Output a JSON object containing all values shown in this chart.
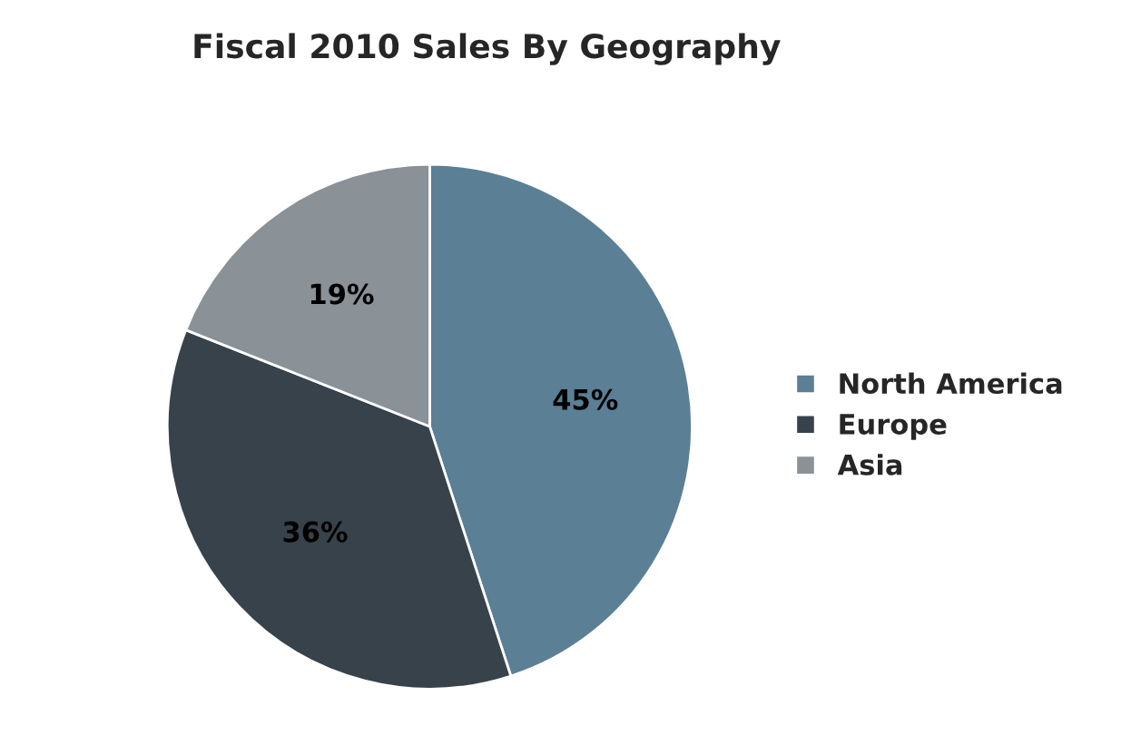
{
  "chart_data": {
    "type": "pie",
    "title": "Fiscal 2010 Sales By Geography",
    "categories": [
      "North America",
      "Europe",
      "Asia"
    ],
    "values": [
      45,
      36,
      19
    ],
    "colors": [
      "#5b7f95",
      "#37424a",
      "#8a9197"
    ],
    "value_labels": [
      "45%",
      "36%",
      "19%"
    ],
    "legend": "right"
  }
}
